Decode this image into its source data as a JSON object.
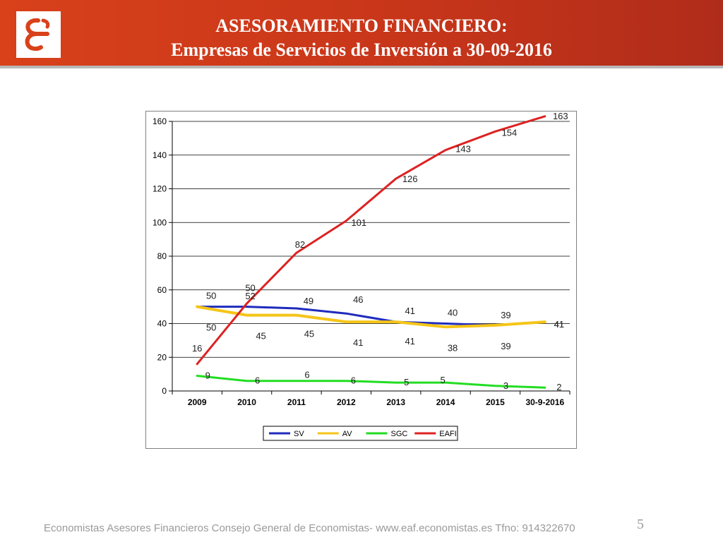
{
  "header": {
    "title_line1": "ASESORAMIENTO FINANCIERO:",
    "title_line2": "Empresas de Servicios de Inversión a 30-09-2016",
    "logo_icon": "economistas-e-logo-icon"
  },
  "colors": {
    "header_bg": "#c8361a",
    "SV": "#1f2bbd",
    "AV": "#f5c518",
    "SGC": "#22dd22",
    "EAFI": "#dd2222"
  },
  "chart_data": {
    "type": "line",
    "categories": [
      "2009",
      "2010",
      "2011",
      "2012",
      "2013",
      "2014",
      "2015",
      "30-9-2016"
    ],
    "ylim": [
      0,
      160
    ],
    "yticks": [
      0,
      20,
      40,
      60,
      80,
      100,
      120,
      140,
      160
    ],
    "grid": true,
    "legend_position": "bottom",
    "xlabel": "",
    "ylabel": "",
    "series": [
      {
        "name": "SV",
        "values": [
          50,
          50,
          49,
          46,
          41,
          40,
          39,
          41
        ]
      },
      {
        "name": "AV",
        "values": [
          50,
          45,
          45,
          41,
          41,
          38,
          39,
          41
        ]
      },
      {
        "name": "SGC",
        "values": [
          9,
          6,
          6,
          6,
          5,
          5,
          3,
          2
        ]
      },
      {
        "name": "EAFI",
        "values": [
          16,
          52,
          82,
          101,
          126,
          143,
          154,
          163
        ]
      }
    ]
  },
  "footer": {
    "text": "Economistas Asesores Financieros Consejo General de Economistas- www.eaf.economistas.es Tfno: 914322670",
    "page_number": "5"
  }
}
